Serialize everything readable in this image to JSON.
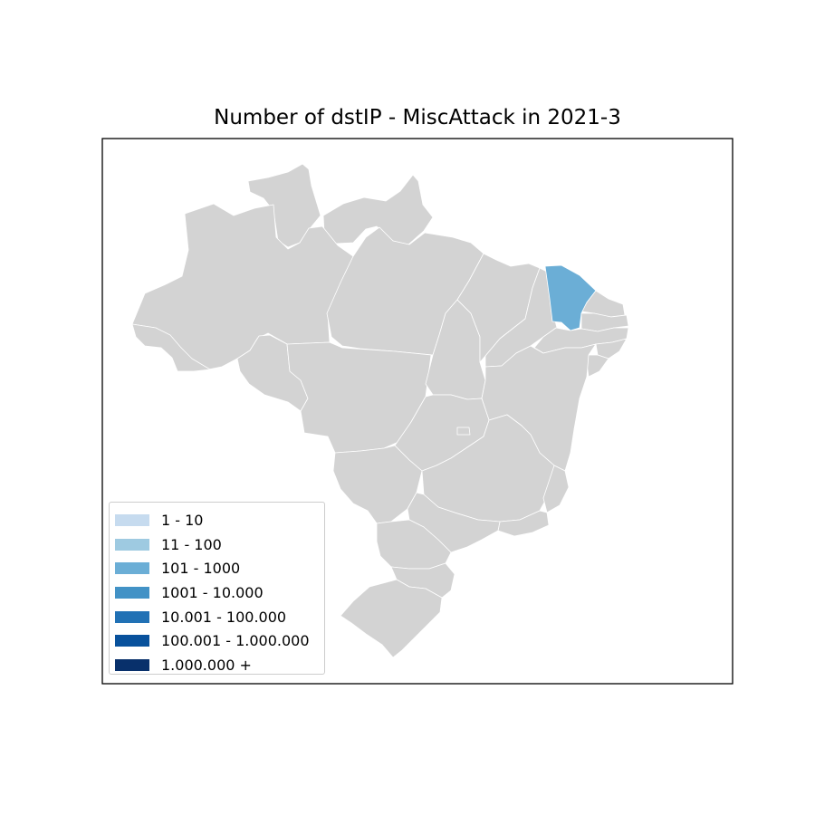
{
  "map": {
    "title": "Number of dstIP - MiscAttack in 2021-3",
    "colors": {
      "no_data": "#d3d3d3",
      "border": "#ffffff",
      "frame": "#000000"
    },
    "regions": [
      {
        "name": "Roraima",
        "bin": null
      },
      {
        "name": "Amapá",
        "bin": null
      },
      {
        "name": "Amazonas",
        "bin": null
      },
      {
        "name": "Pará",
        "bin": null
      },
      {
        "name": "Acre",
        "bin": null
      },
      {
        "name": "Rondônia",
        "bin": null
      },
      {
        "name": "Mato Grosso",
        "bin": null
      },
      {
        "name": "Tocantins",
        "bin": null
      },
      {
        "name": "Maranhão",
        "bin": null
      },
      {
        "name": "Piauí",
        "bin": null
      },
      {
        "name": "Ceará",
        "bin": "101 - 1000"
      },
      {
        "name": "Rio Grande do Norte",
        "bin": null
      },
      {
        "name": "Paraíba",
        "bin": null
      },
      {
        "name": "Pernambuco",
        "bin": null
      },
      {
        "name": "Alagoas",
        "bin": null
      },
      {
        "name": "Sergipe",
        "bin": null
      },
      {
        "name": "Bahia",
        "bin": null
      },
      {
        "name": "Goiás",
        "bin": null
      },
      {
        "name": "Distrito Federal",
        "bin": null
      },
      {
        "name": "Mato Grosso do Sul",
        "bin": null
      },
      {
        "name": "Minas Gerais",
        "bin": null
      },
      {
        "name": "Espírito Santo",
        "bin": null
      },
      {
        "name": "Rio de Janeiro",
        "bin": null
      },
      {
        "name": "São Paulo",
        "bin": null
      },
      {
        "name": "Paraná",
        "bin": null
      },
      {
        "name": "Santa Catarina",
        "bin": null
      },
      {
        "name": "Rio Grande do Sul",
        "bin": null
      }
    ],
    "legend": {
      "placement": "lower-left",
      "items": [
        {
          "label": "1 - 10",
          "color": "#c6dbef"
        },
        {
          "label": "11 - 100",
          "color": "#9ecae1"
        },
        {
          "label": "101 - 1000",
          "color": "#6baed6"
        },
        {
          "label": "1001 - 10.000",
          "color": "#4292c6"
        },
        {
          "label": "10.001 - 100.000",
          "color": "#2171b5"
        },
        {
          "label": "100.001 - 1.000.000",
          "color": "#08519c"
        },
        {
          "label": "1.000.000 +",
          "color": "#08306b"
        }
      ]
    }
  }
}
